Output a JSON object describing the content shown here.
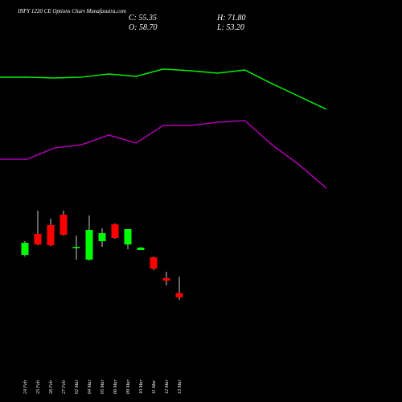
{
  "chart_data": {
    "type": "candlestick",
    "title": "INFY 1220 CE Options Chart Munafasutra.com",
    "ohlc_text": {
      "close": "C: 55.35",
      "high": "H: 71.80",
      "open": "O: 58.70",
      "low": "L: 53.20"
    },
    "categories": [
      "24 Feb",
      "25 Feb",
      "26 Feb",
      "27 Feb",
      "02 Mar",
      "04 Mar",
      "05 Mar",
      "06 Mar",
      "09 Mar",
      "10 Mar",
      "11 Mar",
      "12 Mar",
      "13 Mar"
    ],
    "open": [
      89.1,
      105.8,
      112.8,
      121.1,
      95.2,
      85.3,
      100.0,
      113.4,
      97.4,
      93.0,
      87.2,
      70.6,
      58.7
    ],
    "high": [
      100.0,
      124.3,
      117.9,
      124.3,
      104.5,
      120.5,
      110.2,
      114.1,
      109.6,
      95.5,
      87.8,
      75.7,
      71.8
    ],
    "low": [
      87.8,
      96.8,
      96.2,
      104.5,
      85.3,
      84.6,
      95.5,
      101.9,
      93.6,
      93.0,
      77.0,
      64.8,
      53.2
    ],
    "close": [
      98.7,
      97.4,
      96.8,
      105.1,
      95.5,
      109.0,
      106.4,
      102.6,
      109.6,
      94.9,
      78.2,
      68.6,
      55.35
    ],
    "up_color": "#00ff00",
    "down_color": "#ff0000",
    "lines": [
      {
        "color": "#00ee00",
        "values": [
          230.6,
          230.6,
          229.9,
          230.6,
          233.1,
          231.2,
          237.0,
          235.7,
          233.8,
          236.3,
          225.4,
          215.2,
          205.0
        ]
      },
      {
        "color": "#b000b0",
        "values": [
          165.3,
          165.3,
          174.2,
          176.8,
          184.5,
          178.1,
          192.2,
          192.2,
          194.7,
          196.0,
          176.8,
          160.8,
          142.2
        ]
      }
    ],
    "ylim": [
      -28,
      292
    ]
  }
}
